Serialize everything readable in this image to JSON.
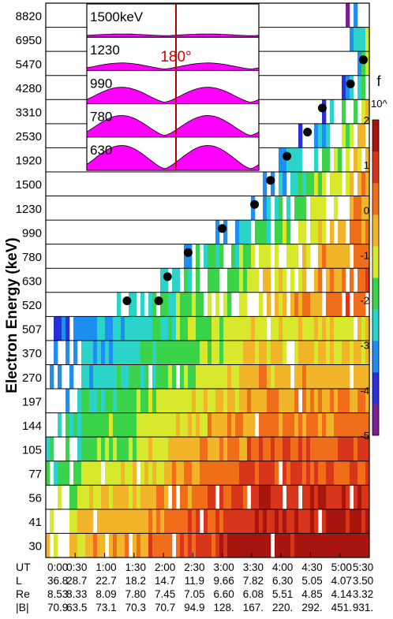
{
  "chart_data": {
    "type": "heatmap",
    "ylabel": "Electron Energy (keV)",
    "energy_channels": [
      8820,
      6950,
      5470,
      4280,
      3310,
      2530,
      1920,
      1500,
      1230,
      990,
      780,
      630,
      520,
      507,
      370,
      270,
      197,
      144,
      105,
      77,
      56,
      41,
      30
    ],
    "x_ticks": [
      "0:00",
      "0:30",
      "1:00",
      "1:30",
      "2:00",
      "2:30",
      "3:00",
      "3:30",
      "4:00",
      "4:30",
      "5:00",
      "5:30"
    ],
    "ut_hours": [
      0,
      0.5,
      1,
      1.5,
      2,
      2.5,
      3,
      3.5,
      4,
      4.5,
      5,
      5.5
    ],
    "ephemeris": [
      {
        "label": "UT",
        "values": [
          "0:00",
          "0:30",
          "1:00",
          "1:30",
          "2:00",
          "2:30",
          "3:00",
          "3:30",
          "4:00",
          "4:30",
          "5:00",
          "5:30"
        ]
      },
      {
        "label": "L",
        "values": [
          "36.8",
          "28.7",
          "22.7",
          "18.2",
          "14.7",
          "11.9",
          "9.66",
          "7.82",
          "6.30",
          "5.05",
          "4.07",
          "3.50"
        ]
      },
      {
        "label": "Re",
        "values": [
          "8.53",
          "8.33",
          "8.09",
          "7.80",
          "7.45",
          "7.05",
          "6.60",
          "6.08",
          "5.51",
          "4.85",
          "4.14",
          "3.32"
        ]
      },
      {
        "label": "|B|",
        "values": [
          "70.9",
          "63.5",
          "73.1",
          "70.3",
          "70.7",
          "94.9",
          "128.",
          "167.",
          "220.",
          "292.",
          "451.",
          "931."
        ]
      }
    ],
    "onset_markers": [
      {
        "energy_kev": 520,
        "ut_hours": 1.38
      },
      {
        "energy_kev": 520,
        "ut_hours": 1.92
      },
      {
        "energy_kev": 630,
        "ut_hours": 2.07
      },
      {
        "energy_kev": 780,
        "ut_hours": 2.42
      },
      {
        "energy_kev": 990,
        "ut_hours": 3.0
      },
      {
        "energy_kev": 1230,
        "ut_hours": 3.55
      },
      {
        "energy_kev": 1500,
        "ut_hours": 3.82
      },
      {
        "energy_kev": 1920,
        "ut_hours": 4.1
      },
      {
        "energy_kev": 2530,
        "ut_hours": 4.45
      },
      {
        "energy_kev": 3310,
        "ut_hours": 4.7
      },
      {
        "energy_kev": 4280,
        "ut_hours": 5.18
      },
      {
        "energy_kev": 5470,
        "ut_hours": 5.4
      }
    ],
    "colorbar": {
      "title": "f",
      "exponent_label": "10^",
      "ticks": [
        "2",
        "1",
        "0",
        "-1",
        "-2",
        "-3",
        "-4",
        "-5"
      ],
      "range": [
        -5,
        2
      ],
      "colors": [
        "#7a1f8f",
        "#2a30d8",
        "#1e8ef0",
        "#2ad4c8",
        "#3ad34a",
        "#d8e82c",
        "#f2b52a",
        "#f06d1a",
        "#d8361a",
        "#a8140e"
      ]
    },
    "inset": {
      "energies": [
        "1500keV",
        "1230",
        "990",
        "780",
        "630"
      ],
      "angle_label": "180°",
      "fill_color": "#ff00ff",
      "marker_color": "#b00000"
    }
  }
}
